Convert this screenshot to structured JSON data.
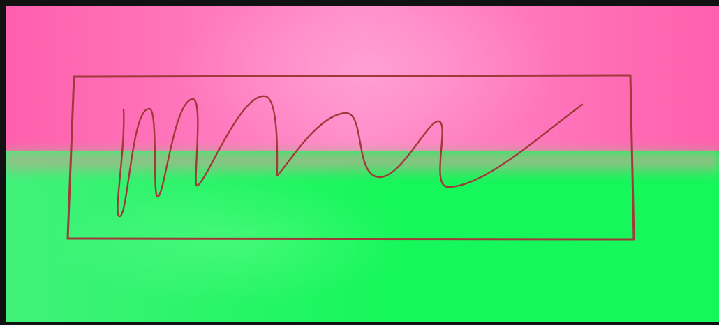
{
  "colors": {
    "frame": "#111111",
    "pink_edge": "#ff5fae",
    "pink_center": "#ff8cc9",
    "green_edge": "#15f75a",
    "green_center": "#41f27a",
    "blend": "#9fb98a",
    "stroke": "#a03a3a"
  },
  "drawing": {
    "shapes": [
      "rectangle",
      "wavy-line"
    ]
  }
}
